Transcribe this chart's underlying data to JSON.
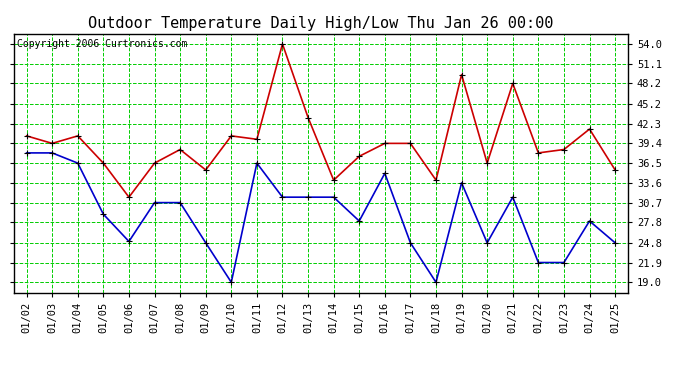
{
  "title": "Outdoor Temperature Daily High/Low Thu Jan 26 00:00",
  "copyright": "Copyright 2006 Curtronics.com",
  "dates": [
    "01/02",
    "01/03",
    "01/04",
    "01/05",
    "01/06",
    "01/07",
    "01/08",
    "01/09",
    "01/10",
    "01/11",
    "01/12",
    "01/13",
    "01/14",
    "01/15",
    "01/16",
    "01/17",
    "01/18",
    "01/19",
    "01/20",
    "01/21",
    "01/22",
    "01/23",
    "01/24",
    "01/25"
  ],
  "high": [
    40.5,
    39.4,
    40.5,
    36.5,
    31.5,
    36.5,
    38.5,
    35.5,
    40.5,
    40.0,
    54.0,
    43.2,
    34.0,
    37.5,
    39.4,
    39.4,
    34.0,
    49.5,
    36.5,
    48.2,
    38.0,
    38.5,
    41.5,
    35.5
  ],
  "low": [
    38.0,
    38.0,
    36.5,
    29.0,
    25.0,
    30.7,
    30.7,
    24.8,
    19.0,
    36.5,
    31.5,
    31.5,
    31.5,
    28.0,
    35.0,
    24.8,
    19.0,
    33.6,
    24.8,
    31.5,
    21.9,
    21.9,
    28.0,
    24.8
  ],
  "high_color": "#cc0000",
  "low_color": "#0000cc",
  "marker_color": "#000000",
  "bg_color": "#ffffff",
  "plot_bg_color": "#ffffff",
  "grid_color": "#00cc00",
  "border_color": "#000000",
  "yticks": [
    19.0,
    21.9,
    24.8,
    27.8,
    30.7,
    33.6,
    36.5,
    39.4,
    42.3,
    45.2,
    48.2,
    51.1,
    54.0
  ],
  "ylim": [
    17.5,
    55.5
  ],
  "title_fontsize": 11,
  "tick_fontsize": 7.5,
  "copyright_fontsize": 7
}
